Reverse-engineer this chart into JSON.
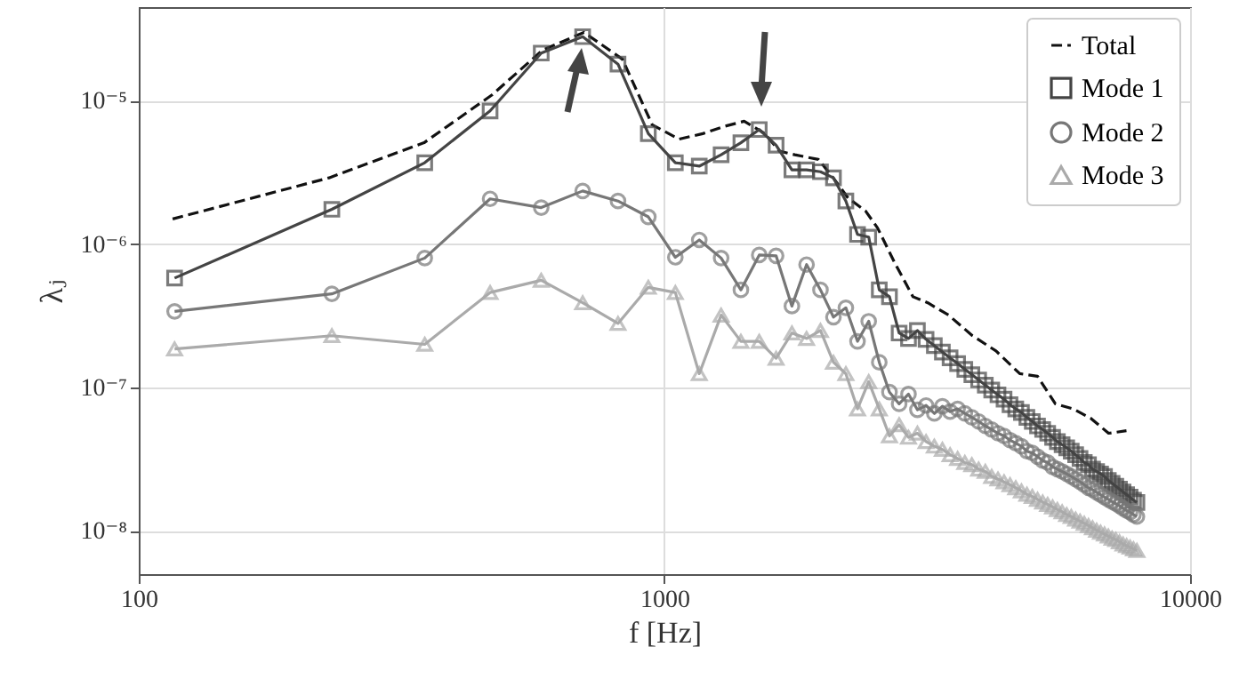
{
  "chart_data": {
    "type": "line",
    "xlabel": "f [Hz]",
    "ylabel": "λⱼ",
    "log": "xy",
    "grid": true,
    "legend": "top right",
    "xlim": [
      100,
      10000
    ],
    "xticks": [
      100,
      1000,
      10000
    ],
    "ylim": [
      5e-09,
      4.5e-05
    ],
    "yticks": [
      {
        "value": 1e-08,
        "label": "10⁻⁸"
      },
      {
        "value": 1e-07,
        "label": "10⁻⁷"
      },
      {
        "value": 1e-06,
        "label": "10⁻⁶"
      },
      {
        "value": 1e-05,
        "label": "10⁻⁵"
      }
    ],
    "x": [
      117,
      233,
      350,
      466,
      583,
      699,
      816,
      932,
      1049,
      1165,
      1282,
      1398,
      1515,
      1631,
      1748,
      1864,
      1981,
      2097,
      2214,
      2330,
      2447,
      2563,
      2680,
      2796,
      2913,
      3029,
      3146,
      3262,
      3379,
      3495,
      3612,
      3728,
      3845,
      3961,
      4078,
      4194,
      4311,
      4427,
      4544,
      4660,
      4777,
      4893,
      5010,
      5126,
      5243,
      5359,
      5476,
      5592,
      5709,
      5825,
      5942,
      6058,
      6175,
      6291,
      6408,
      6524,
      6641,
      6757,
      6874,
      6990,
      7107,
      7223,
      7340,
      7456,
      7573,
      7689,
      7806,
      7922
    ],
    "series": [
      {
        "name": "Total",
        "color": "#111111",
        "marker": "none",
        "line_style": "dashed",
        "x": [
          116,
          230,
          349,
          470,
          586,
          703,
          832,
          948,
          1066,
          1183,
          1295,
          1418,
          1553,
          1656,
          1770,
          1963,
          2095,
          2235,
          2415,
          2543,
          2748,
          2971,
          3170,
          3472,
          3854,
          4274,
          4742,
          5126,
          5543,
          5994,
          6475,
          6998,
          7568
        ],
        "values": [
          1.5e-06,
          2.9e-06,
          5.1e-06,
          1.1e-05,
          2.25e-05,
          3e-05,
          1.95e-05,
          6.8e-06,
          5.4e-06,
          5.9e-06,
          6.6e-06,
          7.2e-06,
          5.9e-06,
          4.45e-06,
          4.2e-06,
          3.9e-06,
          2.9e-06,
          2.1e-06,
          1.7e-06,
          1.3e-06,
          7.3e-07,
          4.3e-07,
          3.9e-07,
          3.2e-07,
          2.3e-07,
          1.8e-07,
          1.25e-07,
          1.2e-07,
          7.7e-08,
          7.1e-08,
          6.1e-08,
          4.8e-08,
          5e-08
        ]
      },
      {
        "name": "Mode 1",
        "color": "#444444",
        "marker": "square",
        "line_style": "solid",
        "values": [
          5.8e-07,
          1.75e-06,
          3.7e-06,
          8.5e-06,
          2.15e-05,
          2.8e-05,
          1.8e-05,
          5.9e-06,
          3.7e-06,
          3.5e-06,
          4.2e-06,
          5.1e-06,
          6.3e-06,
          4.9e-06,
          3.3e-06,
          3.3e-06,
          3.2e-06,
          2.9e-06,
          2e-06,
          1.17e-06,
          1.12e-06,
          4.8e-07,
          4.3e-07,
          2.4e-07,
          2.2e-07,
          2.5e-07,
          2.17e-07,
          1.96e-07,
          1.77e-07,
          1.61e-07,
          1.47e-07,
          1.34e-07,
          1.23e-07,
          1.13e-07,
          1.04e-07,
          9.6e-08,
          8.9e-08,
          8.3e-08,
          7.6e-08,
          7.1e-08,
          6.7e-08,
          6.2e-08,
          5.8e-08,
          5.4e-08,
          5.1e-08,
          4.8e-08,
          4.5e-08,
          4.2e-08,
          4e-08,
          3.8e-08,
          3.6e-08,
          3.4e-08,
          3.2e-08,
          3e-08,
          2.9e-08,
          2.7e-08,
          2.6e-08,
          2.5e-08,
          2.4e-08,
          2.25e-08,
          2.15e-08,
          2.05e-08,
          1.96e-08,
          1.87e-08,
          1.79e-08,
          1.72e-08,
          1.64e-08,
          1.58e-08
        ]
      },
      {
        "name": "Mode 2",
        "color": "#777777",
        "marker": "circle",
        "line_style": "solid",
        "values": [
          3.4e-07,
          4.5e-07,
          8e-07,
          2.07e-06,
          1.8e-06,
          2.35e-06,
          2e-06,
          1.55e-06,
          8.1e-07,
          1.07e-06,
          8e-07,
          4.8e-07,
          8.4e-07,
          8.3e-07,
          3.7e-07,
          7.2e-07,
          4.8e-07,
          3.1e-07,
          3.6e-07,
          2.1e-07,
          2.9e-07,
          1.5e-07,
          9.3e-08,
          7.7e-08,
          9e-08,
          7e-08,
          7.5e-08,
          6.6e-08,
          7.4e-08,
          6.8e-08,
          7.1e-08,
          6.6e-08,
          6.2e-08,
          5.8e-08,
          5.4e-08,
          5.1e-08,
          4.8e-08,
          4.6e-08,
          4.3e-08,
          4.1e-08,
          3.9e-08,
          3.6e-08,
          3.5e-08,
          3.3e-08,
          3.1e-08,
          3e-08,
          2.8e-08,
          2.7e-08,
          2.6e-08,
          2.5e-08,
          2.4e-08,
          2.3e-08,
          2.2e-08,
          2.1e-08,
          2e-08,
          1.94e-08,
          1.86e-08,
          1.79e-08,
          1.72e-08,
          1.66e-08,
          1.6e-08,
          1.55e-08,
          1.5e-08,
          1.44e-08,
          1.39e-08,
          1.35e-08,
          1.3e-08,
          1.26e-08
        ]
      },
      {
        "name": "Mode 3",
        "color": "#aaaaaa",
        "marker": "triangle",
        "line_style": "solid",
        "values": [
          1.86e-07,
          2.3e-07,
          2e-07,
          4.6e-07,
          5.6e-07,
          3.9e-07,
          2.8e-07,
          5e-07,
          4.6e-07,
          1.25e-07,
          3.2e-07,
          2.1e-07,
          2.1e-07,
          1.6e-07,
          2.4e-07,
          2.2e-07,
          2.5e-07,
          1.5e-07,
          1.25e-07,
          7.1e-08,
          1.1e-07,
          7.1e-08,
          4.6e-08,
          5.5e-08,
          4.5e-08,
          4.8e-08,
          4.2e-08,
          3.9e-08,
          3.7e-08,
          3.4e-08,
          3.2e-08,
          3e-08,
          2.9e-08,
          2.7e-08,
          2.6e-08,
          2.4e-08,
          2.3e-08,
          2.2e-08,
          2.1e-08,
          2e-08,
          1.9e-08,
          1.8e-08,
          1.74e-08,
          1.66e-08,
          1.59e-08,
          1.53e-08,
          1.47e-08,
          1.41e-08,
          1.36e-08,
          1.3e-08,
          1.26e-08,
          1.21e-08,
          1.17e-08,
          1.13e-08,
          1.09e-08,
          1.05e-08,
          1.01e-08,
          9.8e-09,
          9.5e-09,
          9.2e-09,
          8.9e-09,
          8.7e-09,
          8.4e-09,
          8.1e-09,
          7.9e-09,
          7.7e-09,
          7.5e-09,
          7.3e-09
        ]
      }
    ]
  }
}
